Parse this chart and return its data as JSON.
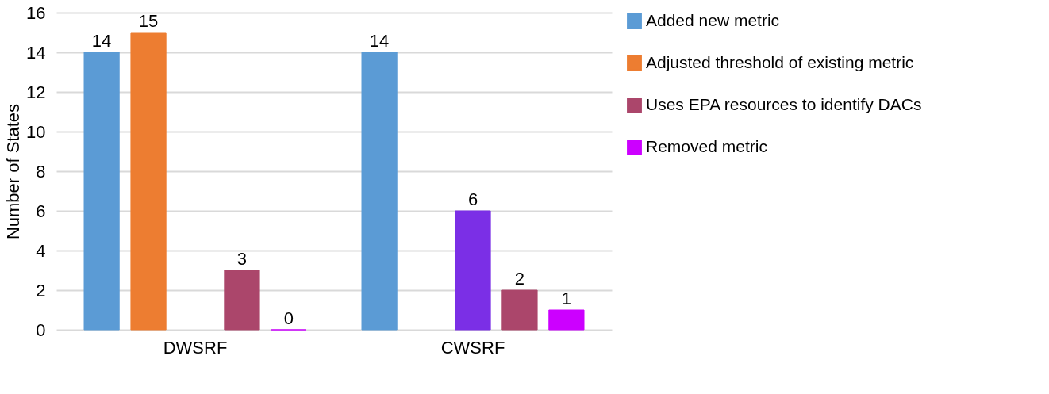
{
  "chart_data": {
    "type": "bar",
    "ylabel": "Number of States",
    "categories": [
      "DWSRF",
      "CWSRF"
    ],
    "series": [
      {
        "name": "Added new metric",
        "color": "#5b9bd5",
        "values": [
          14,
          14
        ]
      },
      {
        "name": "Adjusted threshold of existing metric",
        "color": "#ed7d31",
        "values": [
          15,
          null
        ]
      },
      {
        "color": "#7b2fe6",
        "values": [
          null,
          6
        ]
      },
      {
        "name": "Uses EPA resources to identify DACs",
        "color": "#ab466b",
        "values": [
          3,
          2
        ]
      },
      {
        "name": "Removed metric",
        "color": "#cc00ff",
        "values": [
          0,
          1
        ]
      }
    ],
    "ylim": [
      0,
      16
    ],
    "yticks": [
      0,
      2,
      4,
      6,
      8,
      10,
      12,
      14,
      16
    ],
    "grid": "y",
    "legend": "right",
    "data_labels": true
  }
}
